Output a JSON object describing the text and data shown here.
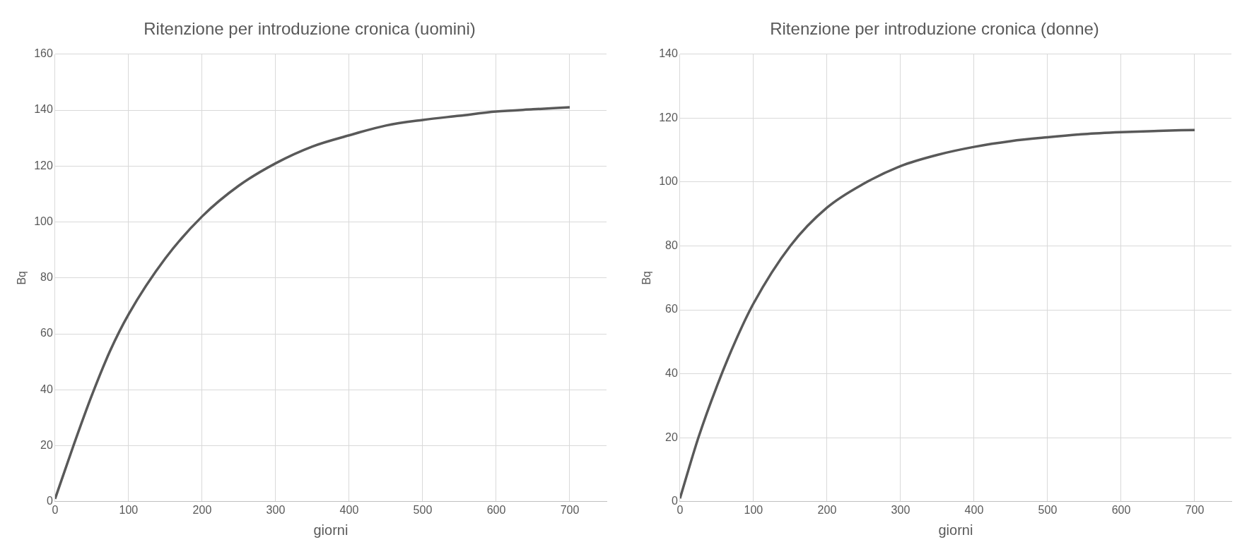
{
  "chart_data": [
    {
      "type": "line",
      "title": "Ritenzione per introduzione cronica (uomini)",
      "xlabel": "giorni",
      "ylabel": "Bq",
      "xlim": [
        0,
        750
      ],
      "xticks": [
        0,
        100,
        200,
        300,
        400,
        500,
        600,
        700
      ],
      "ylim": [
        0,
        160
      ],
      "yticks": [
        0,
        20,
        40,
        60,
        80,
        100,
        120,
        140,
        160
      ],
      "grid": true,
      "marker": "none",
      "line_style": "solid",
      "series": [
        {
          "color": "#595959",
          "x": [
            0,
            25,
            50,
            75,
            100,
            150,
            200,
            250,
            300,
            350,
            400,
            450,
            500,
            550,
            600,
            650,
            700
          ],
          "values": [
            1,
            20,
            38,
            54,
            67,
            87,
            102,
            113,
            121,
            127,
            131,
            134.5,
            136.5,
            138,
            139.5,
            140.3,
            141
          ]
        }
      ]
    },
    {
      "type": "line",
      "title": "Ritenzione per introduzione cronica (donne)",
      "xlabel": "giorni",
      "ylabel": "Bq",
      "xlim": [
        0,
        750
      ],
      "xticks": [
        0,
        100,
        200,
        300,
        400,
        500,
        600,
        700
      ],
      "ylim": [
        0,
        140
      ],
      "yticks": [
        0,
        20,
        40,
        60,
        80,
        100,
        120,
        140
      ],
      "grid": true,
      "marker": "none",
      "line_style": "solid",
      "series": [
        {
          "color": "#595959",
          "x": [
            0,
            25,
            50,
            75,
            100,
            150,
            200,
            250,
            300,
            350,
            400,
            450,
            500,
            550,
            600,
            650,
            700
          ],
          "values": [
            1,
            20,
            36,
            50,
            62,
            80,
            92,
            99.5,
            105,
            108.5,
            111,
            112.8,
            114,
            115,
            115.6,
            116,
            116.3
          ]
        }
      ]
    }
  ]
}
